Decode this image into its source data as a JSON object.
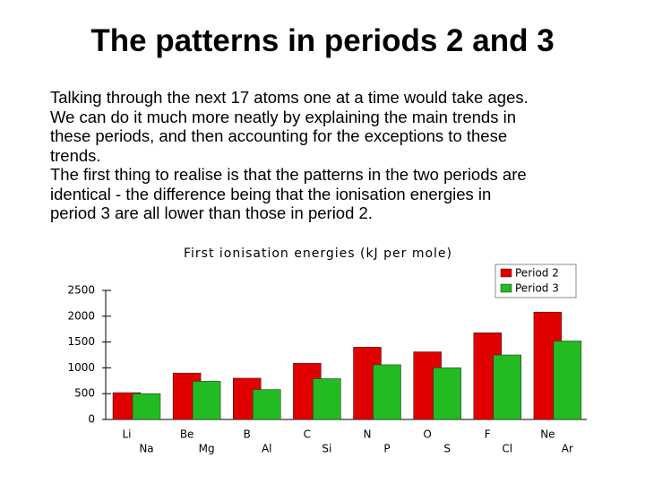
{
  "slide": {
    "title": "The patterns in periods 2 and 3",
    "lines": [
      "Talking through the next 17 atoms one at a time would take ages.",
      "We can do it much more neatly by explaining the main trends in",
      "these periods, and then accounting for the exceptions to these",
      "trends.",
      "The first thing to realise is that the patterns in the two periods are",
      "identical - the difference being that the ionisation energies in",
      "period 3 are all lower than those in period 2."
    ]
  },
  "chart_data": {
    "type": "bar",
    "title": "First ionisation energies (kJ per mole)",
    "series": [
      {
        "name": "Period 2",
        "color": "#e00000",
        "labels": [
          "Li",
          "Be",
          "B",
          "C",
          "N",
          "O",
          "F",
          "Ne"
        ],
        "values": [
          520,
          900,
          800,
          1090,
          1400,
          1310,
          1680,
          2080
        ]
      },
      {
        "name": "Period 3",
        "color": "#22bb22",
        "labels": [
          "Na",
          "Mg",
          "Al",
          "Si",
          "P",
          "S",
          "Cl",
          "Ar"
        ],
        "values": [
          500,
          740,
          580,
          790,
          1060,
          1000,
          1250,
          1520
        ]
      }
    ],
    "ylim": [
      0,
      2500
    ],
    "yticks": [
      0,
      500,
      1000,
      1500,
      2000,
      2500
    ],
    "legend": "top-right"
  }
}
